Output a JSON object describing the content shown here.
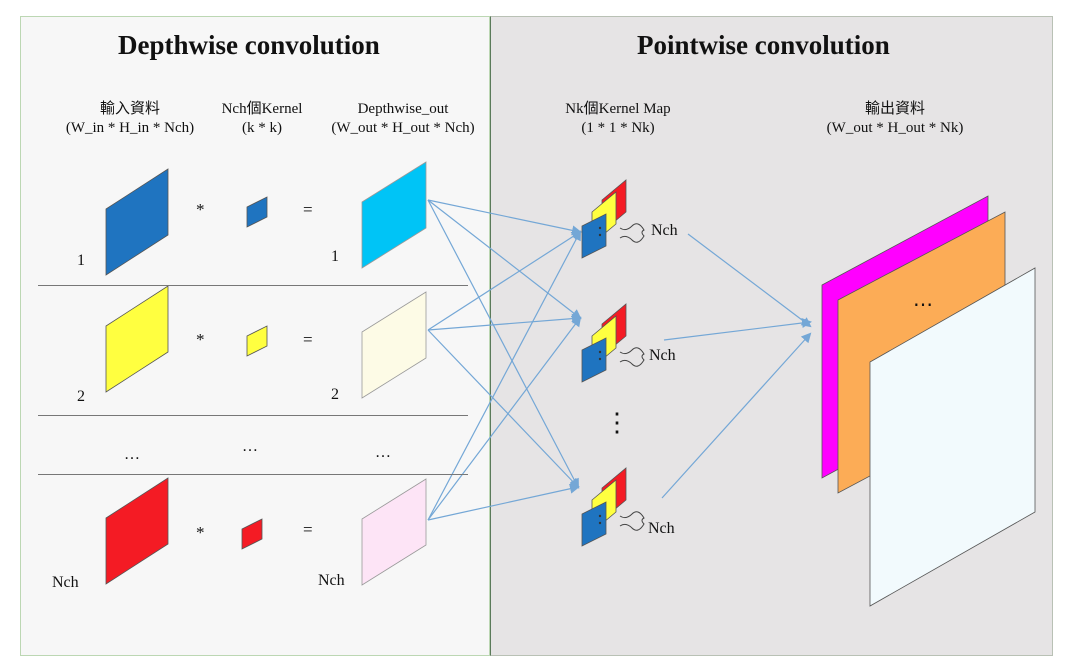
{
  "depthwise": {
    "title": "Depthwise convolution",
    "header": {
      "input_line1": "輸入資料",
      "input_line2": "(W_in * H_in * Nch)",
      "kernel_line1": "Nch個Kernel",
      "kernel_line2": "(k * k)",
      "out_line1": "Depthwise_out",
      "out_line2": "(W_out * H_out * Nch)"
    },
    "rows": [
      {
        "input_label": "1",
        "out_label": "1",
        "op_mul": "*",
        "op_eq": "=",
        "input_color": "#1f74c0",
        "kernel_color": "#1f74c0",
        "out_color": "#00c4f6"
      },
      {
        "input_label": "2",
        "out_label": "2",
        "op_mul": "*",
        "op_eq": "=",
        "input_color": "#ffff40",
        "kernel_color": "#ffff40",
        "out_color": "#fdfbe6"
      },
      {
        "input_label": "Nch",
        "out_label": "Nch",
        "op_mul": "*",
        "op_eq": "=",
        "input_color": "#f41b24",
        "kernel_color": "#f41b24",
        "out_color": "#fde4f6"
      }
    ],
    "ellipsis": "…"
  },
  "pointwise": {
    "title": "Pointwise convolution",
    "kernel_header_line1": "Nk個Kernel Map",
    "kernel_header_line2": "(1 * 1 * Nk)",
    "output_header_line1": "輸出資料",
    "output_header_line2": "(W_out * H_out * Nk)",
    "brace_label": "Nch",
    "vertical_ellipsis": "⋮",
    "output_ellipsis": "…",
    "output_colors": [
      "#ff00ff",
      "#fcac56",
      "#f2fafd"
    ]
  },
  "colors": {
    "arrow": "#74a7d6"
  }
}
